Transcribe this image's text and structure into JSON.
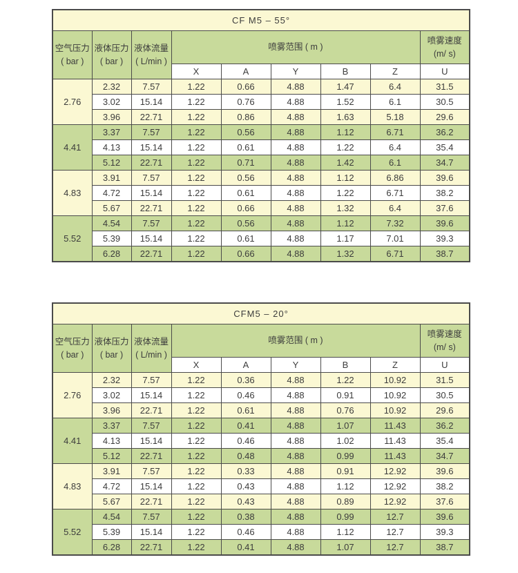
{
  "colors": {
    "cream_row": "#fbf8d3",
    "green_row": "#c8da9b",
    "border": "#4a4a4a",
    "text": "#3c3c3c"
  },
  "labels": {
    "air_pressure": [
      "空气压力",
      "( bar )"
    ],
    "liquid_pressure": [
      "液体压力",
      "( bar )"
    ],
    "liquid_flow": [
      "液体流量",
      "( L/min )"
    ],
    "spray_range": "喷雾范围 ( m )",
    "spray_speed": [
      "喷雾速度",
      "(m/ s)"
    ],
    "axes": [
      "X",
      "A",
      "Y",
      "B",
      "Z"
    ],
    "speed_axis": "U"
  },
  "tables": [
    {
      "title": "CF M5 – 55°",
      "groups": [
        {
          "air_pressure": "2.76",
          "tone": "cream",
          "rows": [
            [
              "2.32",
              "7.57",
              "1.22",
              "0.66",
              "4.88",
              "1.47",
              "6.4",
              "31.5"
            ],
            [
              "3.02",
              "15.14",
              "1.22",
              "0.76",
              "4.88",
              "1.52",
              "6.1",
              "30.5"
            ],
            [
              "3.96",
              "22.71",
              "1.22",
              "0.86",
              "4.88",
              "1.63",
              "5.18",
              "29.6"
            ]
          ]
        },
        {
          "air_pressure": "4.41",
          "tone": "green",
          "rows": [
            [
              "3.37",
              "7.57",
              "1.22",
              "0.56",
              "4.88",
              "1.12",
              "6.71",
              "36.2"
            ],
            [
              "4.13",
              "15.14",
              "1.22",
              "0.61",
              "4.88",
              "1.22",
              "6.4",
              "35.4"
            ],
            [
              "5.12",
              "22.71",
              "1.22",
              "0.71",
              "4.88",
              "1.42",
              "6.1",
              "34.7"
            ]
          ]
        },
        {
          "air_pressure": "4.83",
          "tone": "cream",
          "rows": [
            [
              "3.91",
              "7.57",
              "1.22",
              "0.56",
              "4.88",
              "1.12",
              "6.86",
              "39.6"
            ],
            [
              "4.72",
              "15.14",
              "1.22",
              "0.61",
              "4.88",
              "1.22",
              "6.71",
              "38.2"
            ],
            [
              "5.67",
              "22.71",
              "1.22",
              "0.66",
              "4.88",
              "1.32",
              "6.4",
              "37.6"
            ]
          ]
        },
        {
          "air_pressure": "5.52",
          "tone": "green",
          "rows": [
            [
              "4.54",
              "7.57",
              "1.22",
              "0.56",
              "4.88",
              "1.12",
              "7.32",
              "39.6"
            ],
            [
              "5.39",
              "15.14",
              "1.22",
              "0.61",
              "4.88",
              "1.17",
              "7.01",
              "39.3"
            ],
            [
              "6.28",
              "22.71",
              "1.22",
              "0.66",
              "4.88",
              "1.32",
              "6.71",
              "38.7"
            ]
          ]
        }
      ]
    },
    {
      "title": "CFM5 – 20°",
      "groups": [
        {
          "air_pressure": "2.76",
          "tone": "cream",
          "rows": [
            [
              "2.32",
              "7.57",
              "1.22",
              "0.36",
              "4.88",
              "1.22",
              "10.92",
              "31.5"
            ],
            [
              "3.02",
              "15.14",
              "1.22",
              "0.46",
              "4.88",
              "0.91",
              "10.92",
              "30.5"
            ],
            [
              "3.96",
              "22.71",
              "1.22",
              "0.61",
              "4.88",
              "0.76",
              "10.92",
              "29.6"
            ]
          ]
        },
        {
          "air_pressure": "4.41",
          "tone": "green",
          "rows": [
            [
              "3.37",
              "7.57",
              "1.22",
              "0.41",
              "4.88",
              "1.07",
              "11.43",
              "36.2"
            ],
            [
              "4.13",
              "15.14",
              "1.22",
              "0.46",
              "4.88",
              "1.02",
              "11.43",
              "35.4"
            ],
            [
              "5.12",
              "22.71",
              "1.22",
              "0.48",
              "4.88",
              "0.99",
              "11.43",
              "34.7"
            ]
          ]
        },
        {
          "air_pressure": "4.83",
          "tone": "cream",
          "rows": [
            [
              "3.91",
              "7.57",
              "1.22",
              "0.33",
              "4.88",
              "0.91",
              "12.92",
              "39.6"
            ],
            [
              "4.72",
              "15.14",
              "1.22",
              "0.43",
              "4.88",
              "1.12",
              "12.92",
              "38.2"
            ],
            [
              "5.67",
              "22.71",
              "1.22",
              "0.43",
              "4.88",
              "0.89",
              "12.92",
              "37.6"
            ]
          ]
        },
        {
          "air_pressure": "5.52",
          "tone": "green",
          "rows": [
            [
              "4.54",
              "7.57",
              "1.22",
              "0.38",
              "4.88",
              "0.99",
              "12.7",
              "39.6"
            ],
            [
              "5.39",
              "15.14",
              "1.22",
              "0.46",
              "4.88",
              "1.12",
              "12.7",
              "39.3"
            ],
            [
              "6.28",
              "22.71",
              "1.22",
              "0.41",
              "4.88",
              "1.07",
              "12.7",
              "38.7"
            ]
          ]
        }
      ]
    }
  ]
}
